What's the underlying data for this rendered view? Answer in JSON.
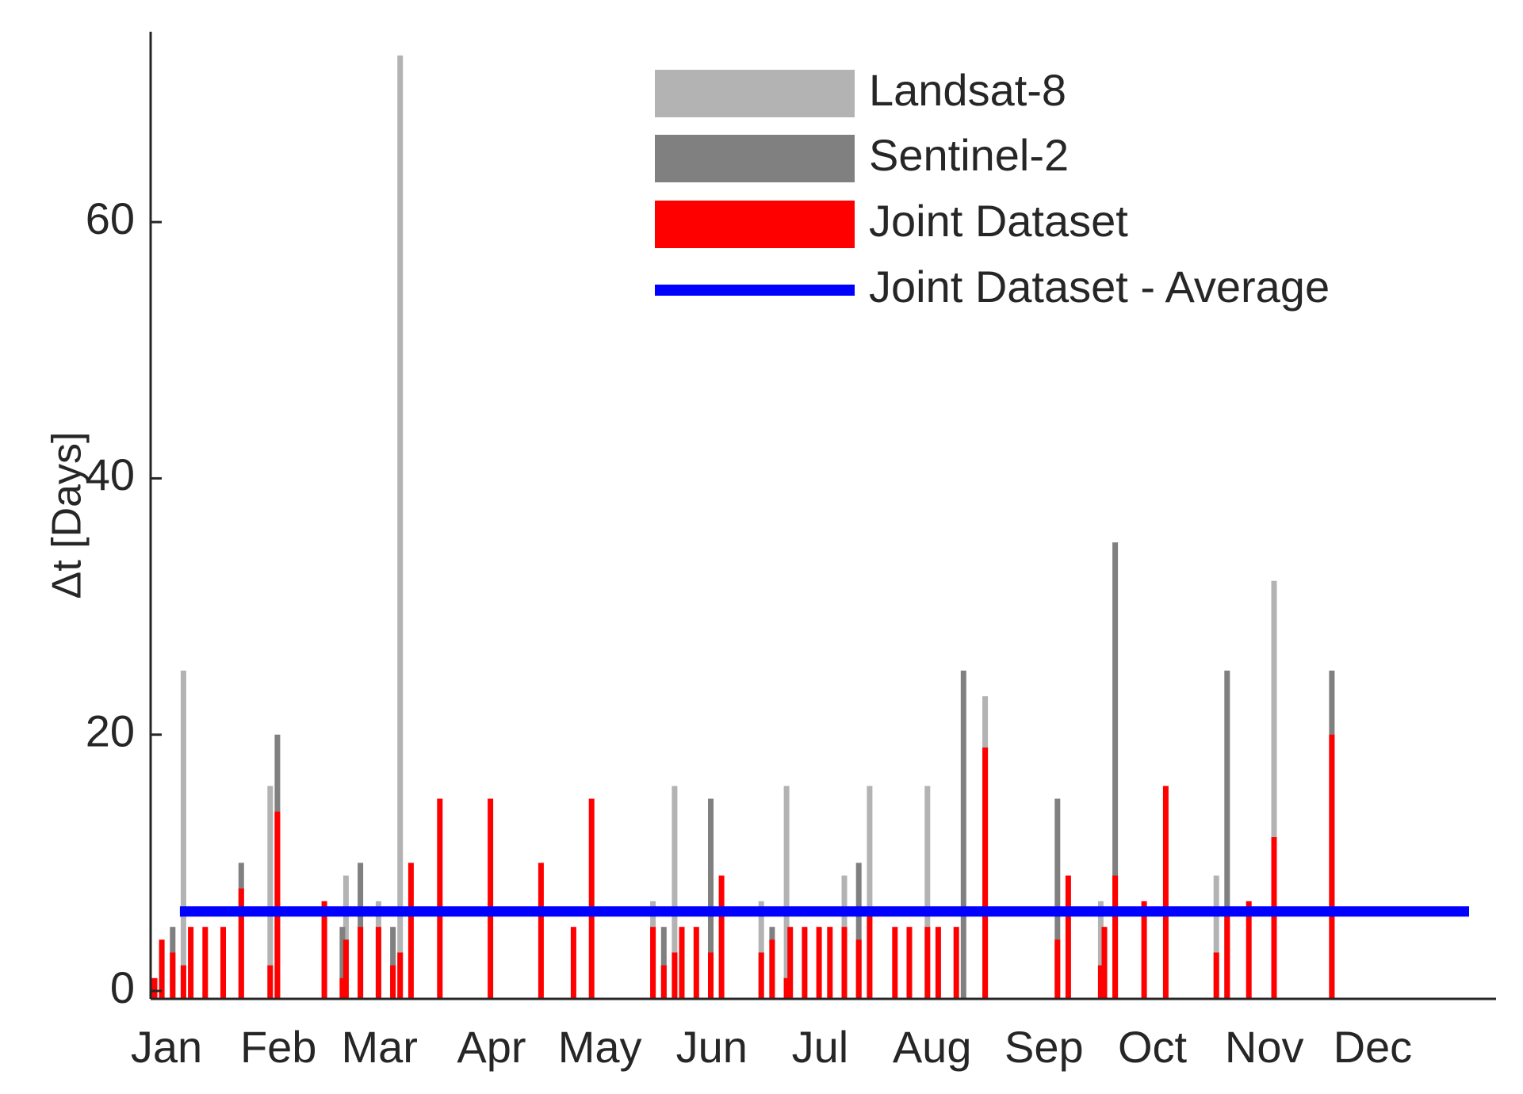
{
  "chart_data": {
    "type": "bar",
    "title": "",
    "xlabel": "",
    "ylabel": "Δt [Days]",
    "x_unit": "day of year",
    "xlim": [
      1,
      365
    ],
    "ylim": [
      0,
      73
    ],
    "yticks": [
      0,
      20,
      40,
      60
    ],
    "ytick_labels": [
      "0",
      "20",
      "40",
      "60"
    ],
    "months": [
      {
        "label": "Jan",
        "day": 1
      },
      {
        "label": "Feb",
        "day": 32
      },
      {
        "label": "Mar",
        "day": 60
      },
      {
        "label": "Apr",
        "day": 91
      },
      {
        "label": "May",
        "day": 121
      },
      {
        "label": "Jun",
        "day": 152
      },
      {
        "label": "Jul",
        "day": 182
      },
      {
        "label": "Aug",
        "day": 213
      },
      {
        "label": "Sep",
        "day": 244
      },
      {
        "label": "Oct",
        "day": 274
      },
      {
        "label": "Nov",
        "day": 305
      },
      {
        "label": "Dec",
        "day": 335
      }
    ],
    "legend_position": "top-right",
    "series": [
      {
        "name": "Landsat-8",
        "color": "#b3b3b3",
        "points": [
          {
            "x": 9,
            "y": 25
          },
          {
            "x": 33,
            "y": 16
          },
          {
            "x": 48,
            "y": 7
          },
          {
            "x": 54,
            "y": 9
          },
          {
            "x": 63,
            "y": 7
          },
          {
            "x": 69,
            "y": 73
          },
          {
            "x": 139,
            "y": 7
          },
          {
            "x": 145,
            "y": 16
          },
          {
            "x": 169,
            "y": 7
          },
          {
            "x": 176,
            "y": 16
          },
          {
            "x": 192,
            "y": 9
          },
          {
            "x": 199,
            "y": 16
          },
          {
            "x": 215,
            "y": 16
          },
          {
            "x": 231,
            "y": 23
          },
          {
            "x": 263,
            "y": 7
          },
          {
            "x": 295,
            "y": 9
          },
          {
            "x": 311,
            "y": 32
          }
        ]
      },
      {
        "name": "Sentinel-2",
        "color": "#808080",
        "points": [
          {
            "x": 6,
            "y": 5
          },
          {
            "x": 25,
            "y": 10
          },
          {
            "x": 35,
            "y": 20
          },
          {
            "x": 53,
            "y": 5
          },
          {
            "x": 58,
            "y": 10
          },
          {
            "x": 67,
            "y": 5
          },
          {
            "x": 142,
            "y": 5
          },
          {
            "x": 155,
            "y": 15
          },
          {
            "x": 172,
            "y": 5
          },
          {
            "x": 196,
            "y": 10
          },
          {
            "x": 225,
            "y": 25
          },
          {
            "x": 251,
            "y": 15
          },
          {
            "x": 267,
            "y": 35
          },
          {
            "x": 298,
            "y": 25
          },
          {
            "x": 327,
            "y": 25
          }
        ]
      },
      {
        "name": "Joint Dataset",
        "color": "#ff0000",
        "points": [
          {
            "x": 1,
            "y": 1
          },
          {
            "x": 3,
            "y": 4
          },
          {
            "x": 6,
            "y": 3
          },
          {
            "x": 9,
            "y": 2
          },
          {
            "x": 11,
            "y": 5
          },
          {
            "x": 15,
            "y": 5
          },
          {
            "x": 20,
            "y": 5
          },
          {
            "x": 25,
            "y": 8
          },
          {
            "x": 33,
            "y": 2
          },
          {
            "x": 35,
            "y": 14
          },
          {
            "x": 48,
            "y": 7
          },
          {
            "x": 53,
            "y": 1
          },
          {
            "x": 54,
            "y": 4
          },
          {
            "x": 58,
            "y": 5
          },
          {
            "x": 63,
            "y": 5
          },
          {
            "x": 67,
            "y": 2
          },
          {
            "x": 69,
            "y": 3
          },
          {
            "x": 72,
            "y": 10
          },
          {
            "x": 80,
            "y": 15
          },
          {
            "x": 94,
            "y": 15
          },
          {
            "x": 108,
            "y": 10
          },
          {
            "x": 117,
            "y": 5
          },
          {
            "x": 122,
            "y": 15
          },
          {
            "x": 139,
            "y": 5
          },
          {
            "x": 142,
            "y": 2
          },
          {
            "x": 145,
            "y": 3
          },
          {
            "x": 147,
            "y": 5
          },
          {
            "x": 151,
            "y": 5
          },
          {
            "x": 155,
            "y": 3
          },
          {
            "x": 158,
            "y": 9
          },
          {
            "x": 169,
            "y": 3
          },
          {
            "x": 172,
            "y": 4
          },
          {
            "x": 176,
            "y": 1
          },
          {
            "x": 177,
            "y": 5
          },
          {
            "x": 181,
            "y": 5
          },
          {
            "x": 185,
            "y": 5
          },
          {
            "x": 188,
            "y": 5
          },
          {
            "x": 192,
            "y": 5
          },
          {
            "x": 196,
            "y": 4
          },
          {
            "x": 199,
            "y": 6
          },
          {
            "x": 206,
            "y": 5
          },
          {
            "x": 210,
            "y": 5
          },
          {
            "x": 215,
            "y": 5
          },
          {
            "x": 218,
            "y": 5
          },
          {
            "x": 223,
            "y": 5
          },
          {
            "x": 231,
            "y": 19
          },
          {
            "x": 251,
            "y": 4
          },
          {
            "x": 254,
            "y": 9
          },
          {
            "x": 263,
            "y": 2
          },
          {
            "x": 264,
            "y": 5
          },
          {
            "x": 267,
            "y": 9
          },
          {
            "x": 275,
            "y": 7
          },
          {
            "x": 281,
            "y": 16
          },
          {
            "x": 295,
            "y": 3
          },
          {
            "x": 298,
            "y": 6
          },
          {
            "x": 304,
            "y": 7
          },
          {
            "x": 311,
            "y": 12
          },
          {
            "x": 327,
            "y": 20
          }
        ]
      },
      {
        "name": "Joint Dataset - Average",
        "color": "#0000ff",
        "type": "line",
        "x": [
          8,
          365
        ],
        "y": [
          6.2,
          6.2
        ]
      }
    ]
  }
}
